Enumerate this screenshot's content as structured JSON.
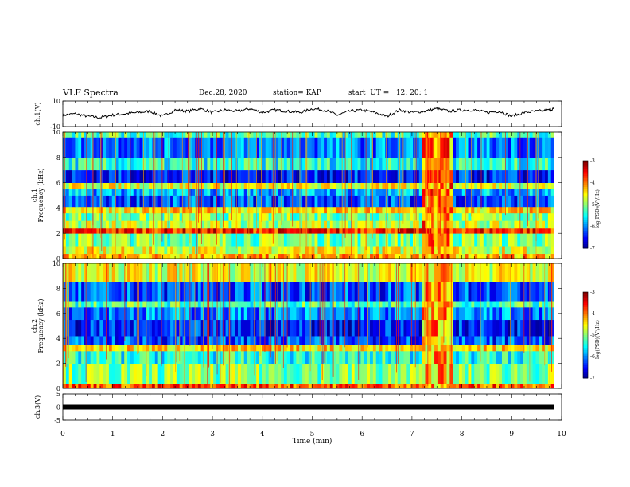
{
  "header": {
    "title": "VLF Spectra",
    "date": "Dec.28, 2020",
    "station": "station= KAP",
    "start": "start  UT =   12: 20: 1"
  },
  "chart_data": [
    {
      "type": "line",
      "ylabel": "ch.1(V)",
      "ylim": [
        -10,
        10
      ],
      "yticks": [
        "10",
        "-10"
      ],
      "x": [
        0,
        0.25,
        0.5,
        0.75,
        1.0,
        1.25,
        1.5,
        1.75,
        2.0,
        2.25,
        2.5,
        2.75,
        3.0,
        3.25,
        3.5,
        3.75,
        4.0,
        4.25,
        4.5,
        4.75,
        5.0,
        5.25,
        5.5,
        5.75,
        6.0,
        6.25,
        6.5,
        6.75,
        7.0,
        7.25,
        7.5,
        7.75,
        8.0,
        8.25,
        8.5,
        8.75,
        9.0,
        9.25,
        9.5,
        9.75,
        9.85
      ],
      "values": [
        -1,
        0,
        -2,
        -3,
        -1,
        0,
        1,
        2,
        -2,
        3,
        2,
        4,
        1,
        3,
        2,
        4,
        1,
        3,
        2,
        1,
        4,
        3,
        -1,
        2,
        3,
        1,
        -2,
        3,
        1,
        2,
        4,
        2,
        3,
        3,
        1,
        2,
        -2,
        1,
        2,
        3,
        4
      ]
    },
    {
      "type": "heatmap",
      "ylabel": "ch.1\nFrequency (kHz)",
      "ylim": [
        0,
        10
      ],
      "yticks": [
        "0",
        "2",
        "4",
        "6",
        "8",
        "10"
      ],
      "colorbar": {
        "label": "log(PSD)(V²/Hz)",
        "ticks": [
          "-3",
          "-4",
          "-5",
          "-6",
          "-7"
        ],
        "range": [
          -7,
          -3
        ]
      },
      "bands": [
        {
          "f0": 0.0,
          "f1": 0.4,
          "level": -4.2
        },
        {
          "f0": 0.4,
          "f1": 1.0,
          "level": -4.6
        },
        {
          "f0": 1.0,
          "f1": 2.0,
          "level": -5.0
        },
        {
          "f0": 2.0,
          "f1": 2.4,
          "level": -3.6
        },
        {
          "f0": 2.4,
          "f1": 3.0,
          "level": -4.8
        },
        {
          "f0": 3.0,
          "f1": 3.6,
          "level": -5.0
        },
        {
          "f0": 3.6,
          "f1": 4.1,
          "level": -4.4
        },
        {
          "f0": 4.1,
          "f1": 5.0,
          "level": -6.2
        },
        {
          "f0": 5.0,
          "f1": 5.5,
          "level": -5.8
        },
        {
          "f0": 5.5,
          "f1": 6.0,
          "level": -4.6
        },
        {
          "f0": 6.0,
          "f1": 7.0,
          "level": -6.4
        },
        {
          "f0": 7.0,
          "f1": 8.0,
          "level": -5.4
        },
        {
          "f0": 8.0,
          "f1": 9.6,
          "level": -6.0
        },
        {
          "f0": 9.6,
          "f1": 10.0,
          "level": -5.2
        }
      ],
      "event": {
        "t0": 7.2,
        "t1": 7.85,
        "level": -4.0
      }
    },
    {
      "type": "heatmap",
      "ylabel": "ch.2\nFrequency (kHz)",
      "ylim": [
        0,
        10
      ],
      "yticks": [
        "0",
        "2",
        "4",
        "6",
        "8",
        "10"
      ],
      "colorbar": {
        "label": "log(PSD)(V²/Hz)",
        "ticks": [
          "-3",
          "-4",
          "-5",
          "-6",
          "-7"
        ],
        "range": [
          -7,
          -3
        ]
      },
      "bands": [
        {
          "f0": 0.0,
          "f1": 0.4,
          "level": -3.8
        },
        {
          "f0": 0.4,
          "f1": 2.0,
          "level": -5.0
        },
        {
          "f0": 2.0,
          "f1": 3.0,
          "level": -5.4
        },
        {
          "f0": 3.0,
          "f1": 3.5,
          "level": -4.4
        },
        {
          "f0": 3.5,
          "f1": 4.2,
          "level": -6.2
        },
        {
          "f0": 4.2,
          "f1": 5.5,
          "level": -6.4
        },
        {
          "f0": 5.5,
          "f1": 6.5,
          "level": -6.0
        },
        {
          "f0": 6.5,
          "f1": 7.0,
          "level": -5.2
        },
        {
          "f0": 7.0,
          "f1": 8.5,
          "level": -6.2
        },
        {
          "f0": 8.5,
          "f1": 10.0,
          "level": -4.6
        }
      ],
      "event": {
        "t0": 7.2,
        "t1": 7.85,
        "level": -4.2
      }
    },
    {
      "type": "line",
      "ylabel": "ch.3(V)",
      "ylim": [
        -5,
        5
      ],
      "yticks": [
        "5",
        "0",
        "-5"
      ],
      "x": [
        0,
        9.85
      ],
      "values": [
        0,
        0
      ]
    }
  ],
  "xaxis": {
    "label": "Time  (min)",
    "ticks": [
      "0",
      "1",
      "2",
      "3",
      "4",
      "5",
      "6",
      "7",
      "8",
      "9",
      "10"
    ],
    "xlim": [
      0,
      10
    ]
  }
}
